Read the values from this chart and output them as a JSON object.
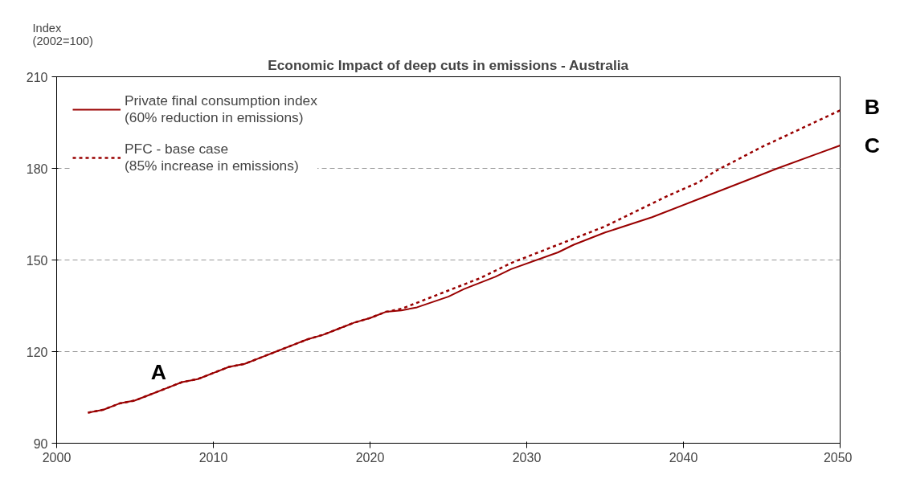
{
  "chart_data": {
    "type": "line",
    "title": "Economic Impact of deep cuts in emissions - Australia",
    "ylabel": "Index\n(2002=100)",
    "xlim": [
      2000,
      2050
    ],
    "xticks": [
      2000,
      2010,
      2020,
      2030,
      2040,
      2050
    ],
    "ylim": [
      90,
      210
    ],
    "yticks": [
      90,
      120,
      150,
      180,
      210
    ],
    "grid": "y",
    "legend": "top left",
    "marker": "none",
    "series": [
      {
        "name": "Private final consumption index\n(60% reduction in emissions)",
        "color": "#990000",
        "line_style": "solid",
        "x": [
          2002,
          2003,
          2004,
          2005,
          2006,
          2007,
          2008,
          2009,
          2010,
          2011,
          2012,
          2013,
          2014,
          2015,
          2016,
          2017,
          2018,
          2019,
          2020,
          2021,
          2022,
          2023,
          2025,
          2026,
          2028,
          2029,
          2032,
          2033,
          2035,
          2038,
          2041,
          2044,
          2046,
          2050
        ],
        "values": [
          100,
          101,
          103,
          104,
          106,
          108,
          110,
          111,
          113,
          115,
          116,
          118,
          120,
          122,
          124,
          125.5,
          127.5,
          129.5,
          131,
          133,
          133.5,
          134.5,
          138,
          140.5,
          144.5,
          147,
          152.5,
          155,
          159,
          164,
          170,
          176,
          180,
          187.5
        ]
      },
      {
        "name": "PFC - base case\n(85% increase in emissions)",
        "color": "#990000",
        "line_style": "dotted",
        "x": [
          2002,
          2003,
          2004,
          2005,
          2006,
          2007,
          2008,
          2009,
          2010,
          2011,
          2012,
          2013,
          2014,
          2015,
          2016,
          2017,
          2018,
          2019,
          2020,
          2021,
          2022,
          2025,
          2027,
          2029,
          2031,
          2033,
          2035,
          2037,
          2039,
          2041,
          2042,
          2045,
          2050
        ],
        "values": [
          100,
          101,
          103,
          104,
          106,
          108,
          110,
          111,
          113,
          115,
          116,
          118,
          120,
          122,
          124,
          125.5,
          127.5,
          129.5,
          131,
          133,
          134,
          140,
          144,
          149,
          153,
          157,
          161,
          166,
          171,
          175.5,
          179,
          187,
          199
        ]
      }
    ],
    "annotations": [
      "A",
      "B",
      "C"
    ]
  }
}
